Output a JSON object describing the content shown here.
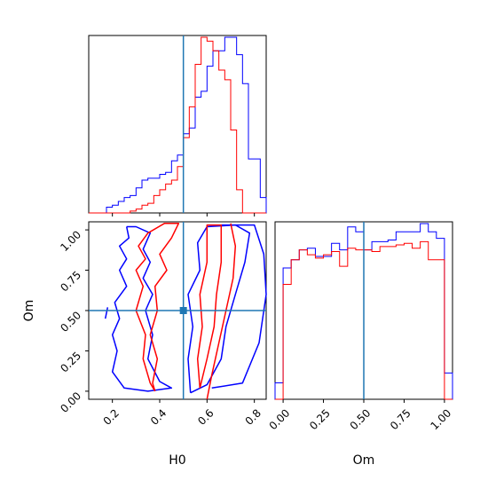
{
  "chart_data": [
    {
      "type": "histogram",
      "panel": "H0 marginal",
      "xlim": [
        0.1,
        0.85
      ],
      "truth": 0.5,
      "series": [
        {
          "color": "#0000ff",
          "bins": [
            0.1,
            0.125,
            0.15,
            0.175,
            0.2,
            0.225,
            0.25,
            0.275,
            0.3,
            0.325,
            0.35,
            0.375,
            0.4,
            0.425,
            0.45,
            0.475,
            0.5,
            0.525,
            0.55,
            0.575,
            0.6,
            0.625,
            0.65,
            0.675,
            0.7,
            0.725,
            0.75,
            0.775,
            0.8,
            0.825,
            0.85
          ],
          "values": [
            0,
            0,
            0,
            0.03,
            0.04,
            0.06,
            0.08,
            0.09,
            0.13,
            0.17,
            0.18,
            0.18,
            0.2,
            0.21,
            0.27,
            0.3,
            0.41,
            0.44,
            0.6,
            0.63,
            0.76,
            0.84,
            0.84,
            0.91,
            0.91,
            0.82,
            0.67,
            0.28,
            0.28,
            0.08
          ]
        },
        {
          "color": "#ff0000",
          "bins": [
            0.1,
            0.125,
            0.15,
            0.175,
            0.2,
            0.225,
            0.25,
            0.275,
            0.3,
            0.325,
            0.35,
            0.375,
            0.4,
            0.425,
            0.45,
            0.475,
            0.5,
            0.525,
            0.55,
            0.575,
            0.6,
            0.625,
            0.65,
            0.675,
            0.7,
            0.725,
            0.75,
            0.775,
            0.8,
            0.825,
            0.85
          ],
          "values": [
            0,
            0,
            0,
            0,
            0,
            0,
            0,
            0.01,
            0.02,
            0.04,
            0.05,
            0.09,
            0.12,
            0.15,
            0.17,
            0.24,
            0.39,
            0.55,
            0.77,
            0.91,
            0.89,
            0.84,
            0.74,
            0.69,
            0.43,
            0.12,
            0,
            0,
            0,
            0
          ]
        }
      ]
    },
    {
      "type": "contour",
      "panel": "H0 vs Om",
      "xlabel": "H0",
      "ylabel": "Om",
      "xlim": [
        0.1,
        0.85
      ],
      "ylim": [
        -0.05,
        1.05
      ],
      "xticks": [
        "0.2",
        "0.4",
        "0.6",
        "0.8"
      ],
      "yticks": [
        "0.00",
        "0.25",
        "0.50",
        "0.75",
        "1.00"
      ],
      "truth": [
        0.5,
        0.5
      ],
      "series": [
        {
          "color": "#0000ff",
          "contours": [
            [
              [
                0.26,
                1.02
              ],
              [
                0.27,
                0.95
              ],
              [
                0.23,
                0.9
              ],
              [
                0.26,
                0.82
              ],
              [
                0.23,
                0.75
              ],
              [
                0.26,
                0.65
              ],
              [
                0.21,
                0.55
              ],
              [
                0.23,
                0.45
              ],
              [
                0.2,
                0.35
              ],
              [
                0.22,
                0.25
              ],
              [
                0.2,
                0.12
              ],
              [
                0.25,
                0.02
              ],
              [
                0.35,
                0.0
              ],
              [
                0.45,
                0.02
              ],
              [
                0.4,
                0.06
              ],
              [
                0.35,
                0.2
              ],
              [
                0.37,
                0.35
              ],
              [
                0.34,
                0.5
              ],
              [
                0.37,
                0.6
              ],
              [
                0.33,
                0.7
              ],
              [
                0.36,
                0.8
              ],
              [
                0.33,
                0.88
              ],
              [
                0.36,
                0.98
              ],
              [
                0.3,
                1.02
              ],
              [
                0.26,
                1.02
              ]
            ],
            [
              [
                0.53,
                -0.01
              ],
              [
                0.52,
                0.2
              ],
              [
                0.54,
                0.4
              ],
              [
                0.52,
                0.6
              ],
              [
                0.57,
                0.75
              ],
              [
                0.56,
                0.92
              ],
              [
                0.6,
                1.02
              ],
              [
                0.72,
                1.03
              ],
              [
                0.78,
                0.98
              ],
              [
                0.76,
                0.8
              ],
              [
                0.72,
                0.6
              ],
              [
                0.68,
                0.4
              ],
              [
                0.66,
                0.2
              ],
              [
                0.6,
                0.04
              ],
              [
                0.53,
                -0.01
              ]
            ],
            [
              [
                0.62,
                0.02
              ],
              [
                0.75,
                0.05
              ],
              [
                0.82,
                0.3
              ],
              [
                0.85,
                0.6
              ],
              [
                0.84,
                0.85
              ],
              [
                0.8,
                1.03
              ],
              [
                0.66,
                1.03
              ]
            ],
            [
              [
                0.18,
                0.52
              ],
              [
                0.17,
                0.45
              ]
            ]
          ]
        },
        {
          "color": "#ff0000",
          "contours": [
            [
              [
                0.38,
                0.0
              ],
              [
                0.36,
                0.05
              ],
              [
                0.33,
                0.2
              ],
              [
                0.34,
                0.35
              ],
              [
                0.3,
                0.5
              ],
              [
                0.33,
                0.65
              ],
              [
                0.3,
                0.75
              ],
              [
                0.34,
                0.82
              ],
              [
                0.31,
                0.9
              ],
              [
                0.35,
                0.98
              ],
              [
                0.42,
                1.04
              ],
              [
                0.48,
                1.04
              ],
              [
                0.45,
                0.95
              ],
              [
                0.4,
                0.85
              ],
              [
                0.43,
                0.75
              ],
              [
                0.38,
                0.65
              ],
              [
                0.39,
                0.5
              ],
              [
                0.36,
                0.35
              ],
              [
                0.39,
                0.2
              ],
              [
                0.37,
                0.05
              ],
              [
                0.38,
                0.0
              ]
            ],
            [
              [
                0.57,
                0.02
              ],
              [
                0.56,
                0.2
              ],
              [
                0.58,
                0.4
              ],
              [
                0.57,
                0.6
              ],
              [
                0.6,
                0.8
              ],
              [
                0.6,
                1.03
              ],
              [
                0.66,
                1.03
              ],
              [
                0.66,
                0.8
              ],
              [
                0.64,
                0.6
              ],
              [
                0.63,
                0.4
              ],
              [
                0.6,
                0.2
              ],
              [
                0.57,
                0.02
              ]
            ],
            [
              [
                0.6,
                -0.05
              ],
              [
                0.62,
                0.1
              ],
              [
                0.65,
                0.3
              ],
              [
                0.68,
                0.5
              ],
              [
                0.71,
                0.7
              ],
              [
                0.72,
                0.9
              ],
              [
                0.7,
                1.04
              ]
            ]
          ]
        }
      ]
    },
    {
      "type": "histogram",
      "panel": "Om marginal",
      "xlabel": "Om",
      "xlim": [
        -0.05,
        1.05
      ],
      "xticks": [
        "0.00",
        "0.25",
        "0.50",
        "0.75",
        "1.00"
      ],
      "truth": 0.5,
      "series": [
        {
          "color": "#0000ff",
          "bins": [
            -0.05,
            0.0,
            0.05,
            0.1,
            0.15,
            0.2,
            0.25,
            0.3,
            0.35,
            0.4,
            0.45,
            0.5,
            0.55,
            0.6,
            0.65,
            0.7,
            0.75,
            0.8,
            0.85,
            0.9,
            0.95,
            1.0,
            1.05
          ],
          "values": [
            0.1,
            0.8,
            0.85,
            0.91,
            0.92,
            0.87,
            0.87,
            0.95,
            0.91,
            1.05,
            1.02,
            0.91,
            0.96,
            0.96,
            0.97,
            1.02,
            1.02,
            1.02,
            1.07,
            1.02,
            0.98,
            0.16
          ]
        },
        {
          "color": "#ff0000",
          "bins": [
            -0.05,
            0.0,
            0.05,
            0.1,
            0.15,
            0.2,
            0.25,
            0.3,
            0.35,
            0.4,
            0.45,
            0.5,
            0.55,
            0.6,
            0.65,
            0.7,
            0.75,
            0.8,
            0.85,
            0.9,
            0.95,
            1.0,
            1.05
          ],
          "values": [
            0,
            0.7,
            0.85,
            0.91,
            0.88,
            0.86,
            0.88,
            0.9,
            0.81,
            0.92,
            0.91,
            0.91,
            0.9,
            0.93,
            0.93,
            0.94,
            0.95,
            0.92,
            0.96,
            0.85,
            0.85,
            0
          ]
        }
      ]
    }
  ],
  "labels": {
    "xlabel_left": "H0",
    "ylabel_left": "Om",
    "xlabel_right": "Om"
  },
  "colors": {
    "sample_a": "#0000ff",
    "sample_b": "#ff0000",
    "truth": "#1f77b4"
  }
}
